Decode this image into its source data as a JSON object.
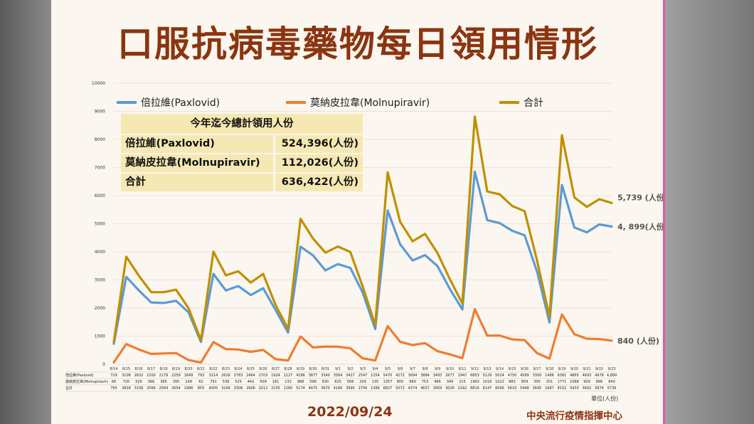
{
  "title": "口服抗病毒藥物每日領用情形",
  "date": "2022/09/24",
  "org": "中央流行疫情指揮中心",
  "unit": "單位(人份)",
  "summary": {
    "heading": "今年迄今總計領用人份",
    "rows": [
      {
        "label": "倍拉維(Paxlovid)",
        "value": "524,396(人份)"
      },
      {
        "label": "莫納皮拉韋(Molnupiravir)",
        "value": "112,026(人份)"
      },
      {
        "label": "合計",
        "value": "636,422(人份)"
      }
    ]
  },
  "end_labels": {
    "total": "5,739 (人份)",
    "paxlovid": "4, 899(人份)",
    "molnupiravir": "840 (人份)"
  },
  "table_row_labels": [
    "倍拉維(Paxlovid)",
    "莫納皮拉韋(Molnupiravir)",
    "合計"
  ],
  "chart_data": {
    "type": "line",
    "ylim": [
      0,
      10000
    ],
    "yticks": [
      0,
      1000,
      2000,
      3000,
      4000,
      5000,
      6000,
      7000,
      8000,
      9000,
      10000
    ],
    "legend_position": "top",
    "categories": [
      "8/14",
      "8/15",
      "8/16",
      "8/17",
      "8/18",
      "8/19",
      "8/20",
      "8/21",
      "8/22",
      "8/23",
      "8/24",
      "8/25",
      "8/26",
      "8/27",
      "8/28",
      "8/29",
      "8/30",
      "8/31",
      "9/1",
      "9/2",
      "9/3",
      "9/4",
      "9/5",
      "9/6",
      "9/7",
      "9/8",
      "9/9",
      "9/10",
      "9/11",
      "9/12",
      "9/13",
      "9/14",
      "9/15",
      "9/16",
      "9/17",
      "9/18",
      "9/19",
      "9/20",
      "9/21",
      "9/22",
      "9/23"
    ],
    "series": [
      {
        "name": "倍拉維(Paxlovid)",
        "color": "#5b9bd5",
        "values": [
          729,
          3108,
          2632,
          2200,
          2179,
          2259,
          1849,
          793,
          3214,
          2626,
          2783,
          2464,
          2703,
          1924,
          1127,
          4186,
          3877,
          3340,
          3564,
          3427,
          2547,
          1254,
          5470,
          4272,
          3694,
          3884,
          3493,
          2677,
          1947,
          6853,
          5129,
          5024,
          4750,
          4589,
          3300,
          1486,
          6381,
          4865,
          4693,
          4978,
          4899
        ],
        "table": [
          "729",
          "3108",
          "2632",
          "2200",
          "2179",
          "2259",
          "1849",
          "793",
          "3214",
          "2626",
          "2783",
          "2464",
          "2703",
          "1924",
          "1127",
          "4186",
          "3877",
          "3340",
          "3564",
          "3427",
          "2547",
          "1254",
          "5470",
          "4272",
          "3694",
          "3884",
          "3493",
          "2677",
          "1947",
          "6853",
          "5129",
          "5024",
          "4750",
          "4589",
          "3300",
          "1486",
          "6381",
          "4865",
          "4693",
          "4978",
          "4,899"
        ]
      },
      {
        "name": "莫納皮拉韋(Molnupiravir)",
        "color": "#ed7d31",
        "values": [
          66,
          720,
          526,
          366,
          385,
          395,
          149,
          62,
          791,
          538,
          525,
          442,
          509,
          181,
          133,
          988,
          598,
          630,
          625,
          568,
          209,
          135,
          1357,
          800,
          680,
          753,
          466,
          349,
          215,
          1963,
          1018,
          1022,
          883,
          859,
          395,
          201,
          1771,
          1068,
          909,
          896,
          840
        ],
        "table": [
          "66",
          "720",
          "526",
          "366",
          "385",
          "395",
          "149",
          "62",
          "791",
          "538",
          "525",
          "442",
          "509",
          "181",
          "133",
          "988",
          "598",
          "630",
          "625",
          "568",
          "209",
          "135",
          "1357",
          "800",
          "680",
          "753",
          "466",
          "349",
          "215",
          "1963",
          "1018",
          "1022",
          "883",
          "859",
          "395",
          "201",
          "1771",
          "1068",
          "909",
          "896",
          "840"
        ]
      },
      {
        "name": "合計",
        "color": "#bf9000",
        "values": [
          795,
          3828,
          3158,
          2566,
          2564,
          2654,
          1998,
          855,
          4005,
          3164,
          3308,
          2906,
          3212,
          2105,
          1260,
          5174,
          4475,
          3970,
          4189,
          3995,
          2756,
          1389,
          6827,
          5072,
          4374,
          4637,
          3959,
          3026,
          2162,
          8816,
          6147,
          6046,
          5633,
          5448,
          3695,
          1687,
          8152,
          5933,
          5602,
          5874,
          5739
        ],
        "table": [
          "795",
          "3828",
          "3158",
          "2566",
          "2564",
          "2654",
          "1998",
          "855",
          "4005",
          "3164",
          "3308",
          "2906",
          "3212",
          "2105",
          "1260",
          "5174",
          "4475",
          "3970",
          "4189",
          "3995",
          "2756",
          "1389",
          "6827",
          "5072",
          "4374",
          "4637",
          "3959",
          "3026",
          "2162",
          "8816",
          "6147",
          "6046",
          "5633",
          "5448",
          "3695",
          "1687",
          "8152",
          "5933",
          "5602",
          "5874",
          "5739"
        ]
      }
    ]
  }
}
